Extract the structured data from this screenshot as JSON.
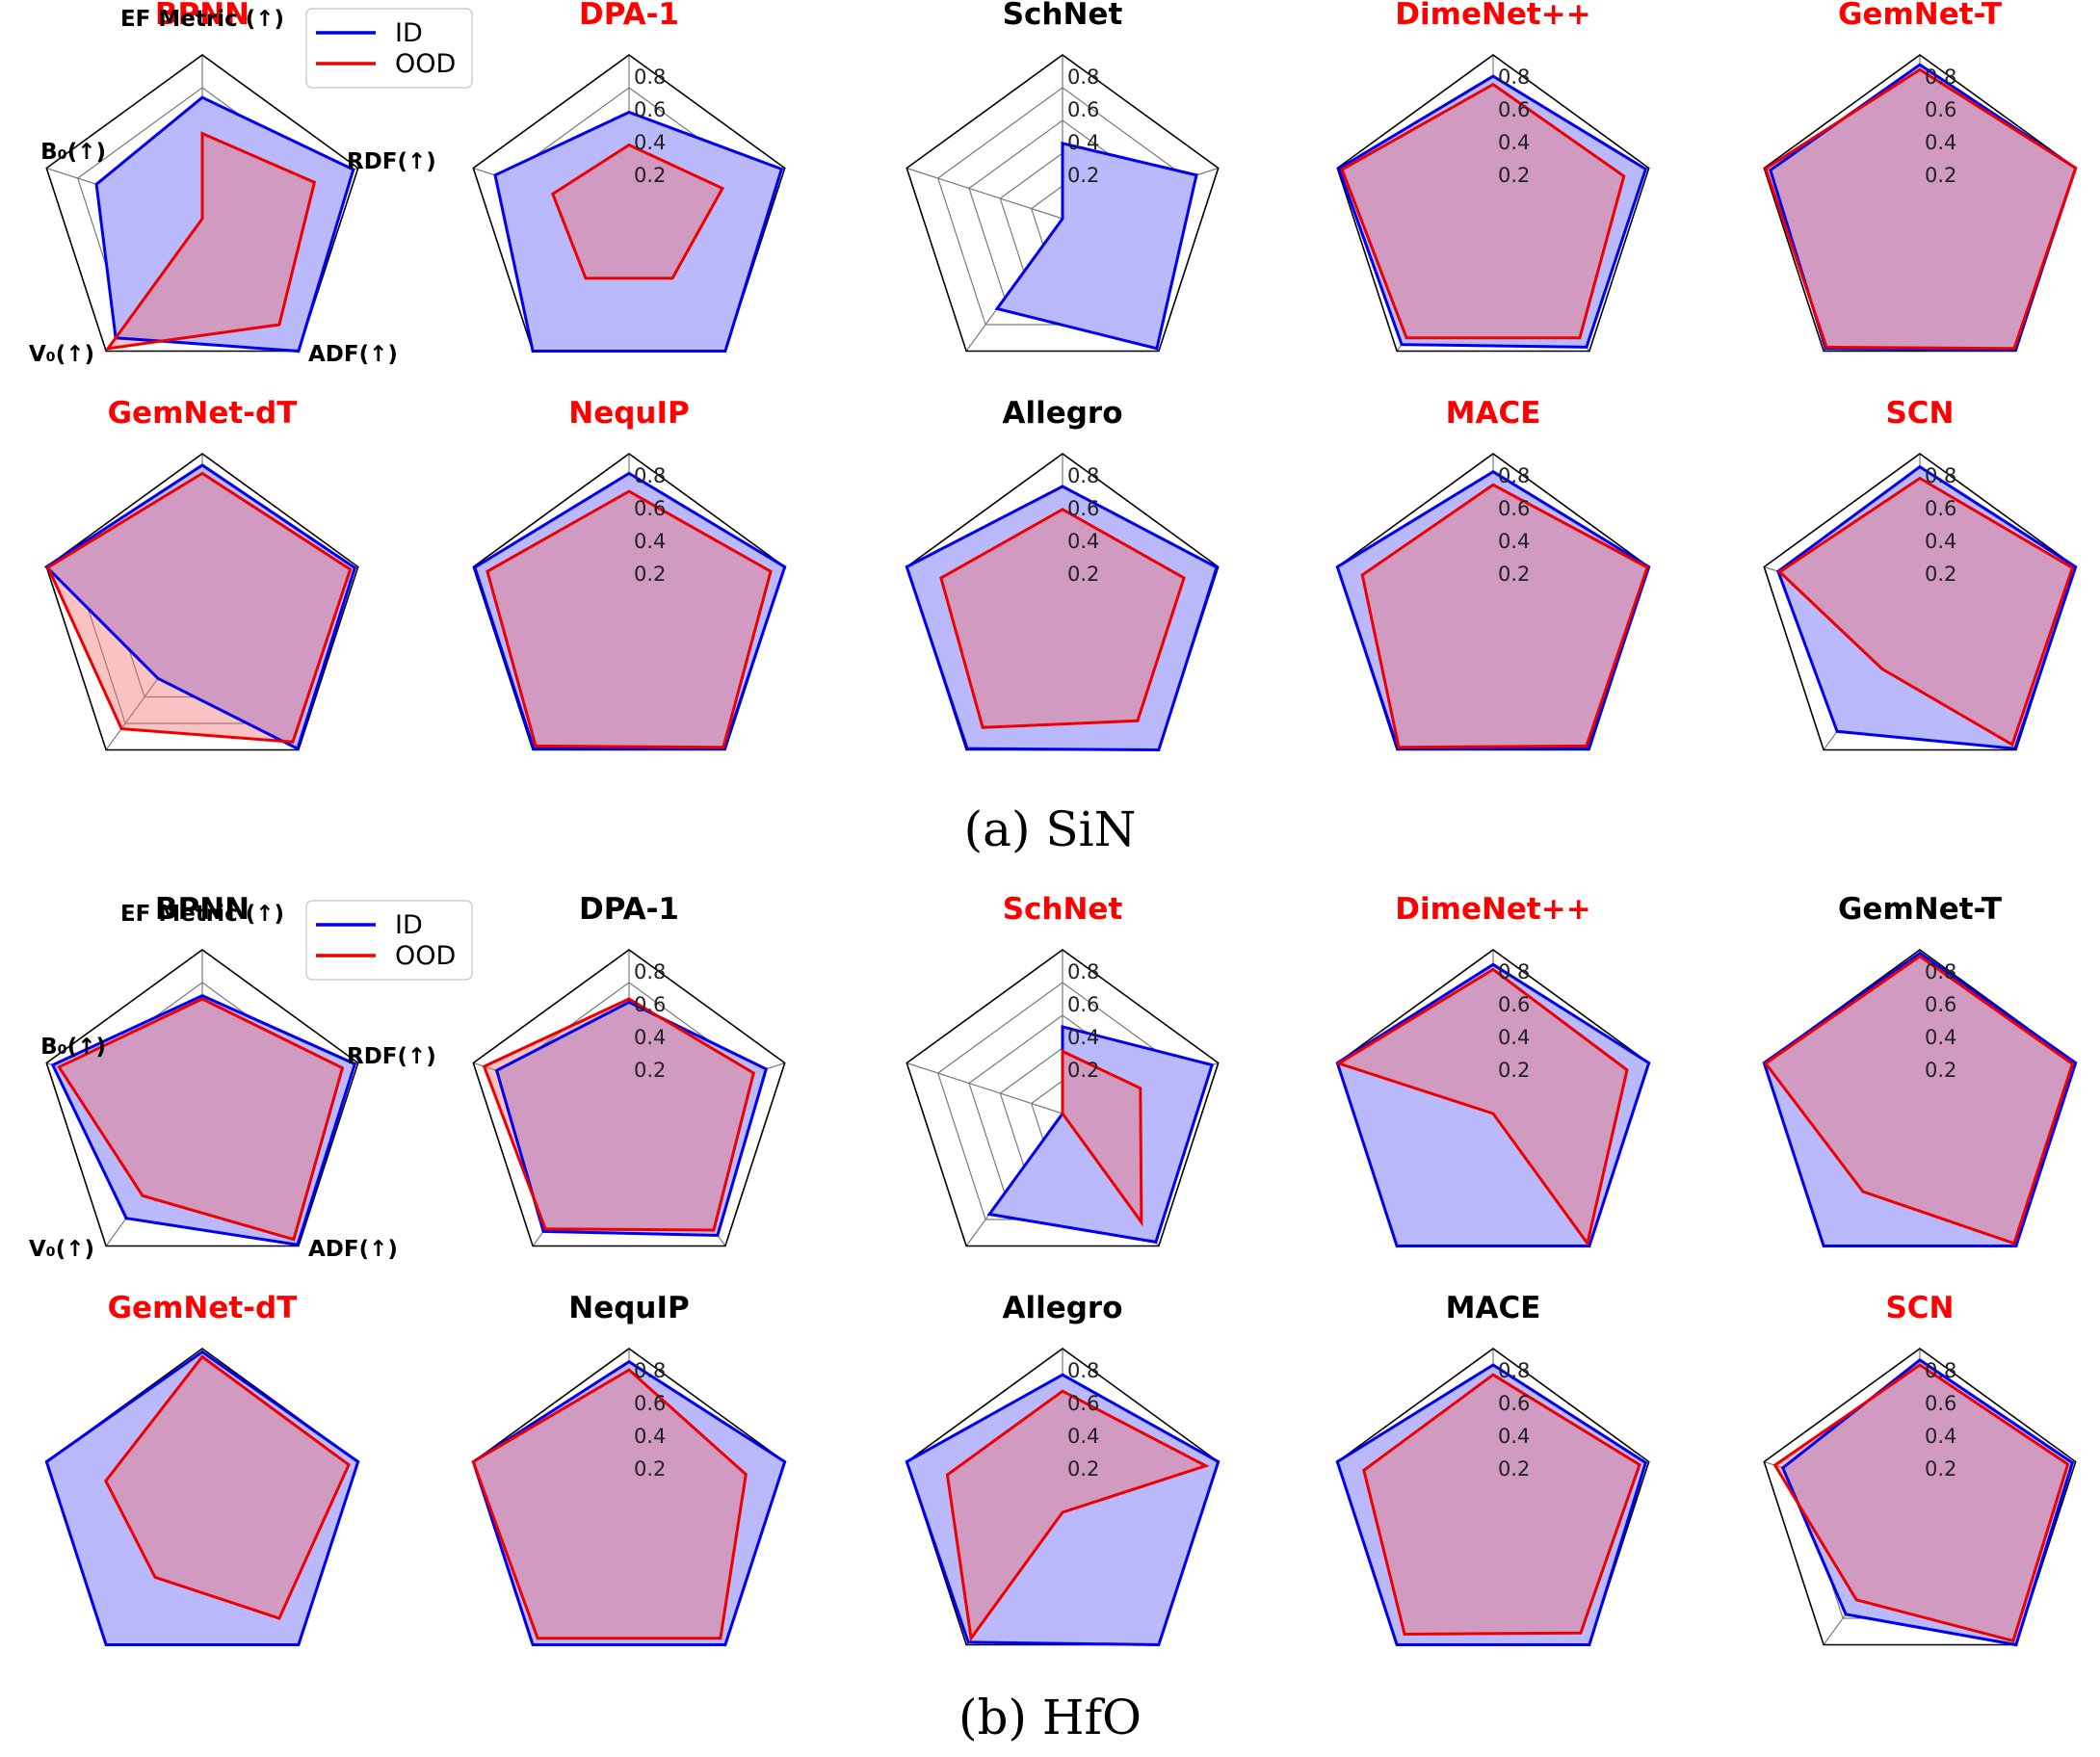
{
  "chart_data": {
    "type": "radar",
    "axes": [
      "EF Metric (↑)",
      "RDF(↑)",
      "ADF(↑)",
      "V₀(↑)",
      "B₀(↑)"
    ],
    "radial_ticks": [
      "0.2",
      "0.4",
      "0.6",
      "0.8"
    ],
    "rlim": [
      0,
      1
    ],
    "legend": {
      "placement": "top",
      "entries": [
        {
          "name": "ID",
          "color": "#0000ee"
        },
        {
          "name": "OOD",
          "color": "#ee0000"
        }
      ]
    },
    "colors": {
      "id": "#0000ee",
      "ood": "#ee0000",
      "id_fill": "#b9b9fb",
      "overlap_fill": "#cf8fbf",
      "ood_fill": "#f8bebe",
      "title_red": "#ff0000",
      "title_black": "#000000"
    },
    "panels": [
      {
        "caption": "(a) SiN",
        "models": [
          {
            "name": "BPNN",
            "title_color": "red",
            "id": [
              0.74,
              0.97,
              1.0,
              0.9,
              0.68
            ],
            "ood": [
              0.52,
              0.72,
              0.8,
              0.98,
              0.0
            ]
          },
          {
            "name": "DPA-1",
            "title_color": "red",
            "id": [
              0.65,
              0.98,
              1.0,
              1.0,
              0.86
            ],
            "ood": [
              0.45,
              0.6,
              0.45,
              0.45,
              0.49
            ]
          },
          {
            "name": "SchNet",
            "title_color": "black",
            "id": [
              0.46,
              0.86,
              0.98,
              0.68,
              0.0
            ],
            "ood": [
              0.0,
              0.0,
              0.0,
              0.0,
              0.0
            ]
          },
          {
            "name": "DimeNet++",
            "title_color": "red",
            "id": [
              0.87,
              0.98,
              0.97,
              0.95,
              0.99
            ],
            "ood": [
              0.82,
              0.84,
              0.9,
              0.9,
              0.97
            ]
          },
          {
            "name": "GemNet-T",
            "title_color": "red",
            "id": [
              0.94,
              1.0,
              0.99,
              0.98,
              0.96
            ],
            "ood": [
              0.91,
              1.0,
              0.98,
              0.97,
              0.99
            ]
          }
        ]
      },
      {
        "caption": "(a) SiN",
        "models": [
          {
            "name": "GemNet-dT",
            "title_color": "red",
            "id": [
              0.93,
              0.98,
              0.99,
              0.46,
              1.0
            ],
            "ood": [
              0.88,
              0.95,
              0.94,
              0.84,
              0.99
            ]
          },
          {
            "name": "NequIP",
            "title_color": "red",
            "id": [
              0.88,
              1.0,
              0.99,
              0.99,
              0.99
            ],
            "ood": [
              0.77,
              0.91,
              0.98,
              0.97,
              0.91
            ]
          },
          {
            "name": "Allegro",
            "title_color": "black",
            "id": [
              0.8,
              0.99,
              1.0,
              0.99,
              1.0
            ],
            "ood": [
              0.66,
              0.78,
              0.78,
              0.83,
              0.78
            ]
          },
          {
            "name": "MACE",
            "title_color": "red",
            "id": [
              0.89,
              1.0,
              0.99,
              0.99,
              1.0
            ],
            "ood": [
              0.81,
              0.99,
              0.97,
              0.98,
              0.84
            ]
          },
          {
            "name": "SCN",
            "title_color": "red",
            "id": [
              0.92,
              1.0,
              0.99,
              0.86,
              0.91
            ],
            "ood": [
              0.85,
              0.98,
              0.96,
              0.39,
              0.9
            ]
          }
        ]
      },
      {
        "caption": "(b) HfO",
        "models": [
          {
            "name": "BPNN",
            "title_color": "black",
            "id": [
              0.72,
              0.98,
              0.99,
              0.79,
              0.96
            ],
            "ood": [
              0.7,
              0.9,
              0.95,
              0.62,
              0.92
            ]
          },
          {
            "name": "DPA-1",
            "title_color": "black",
            "id": [
              0.68,
              0.88,
              0.92,
              0.89,
              0.85
            ],
            "ood": [
              0.7,
              0.8,
              0.88,
              0.87,
              0.93
            ]
          },
          {
            "name": "SchNet",
            "title_color": "red",
            "id": [
              0.53,
              0.96,
              0.97,
              0.76,
              0.0
            ],
            "ood": [
              0.38,
              0.5,
              0.82,
              0.0,
              0.0
            ]
          },
          {
            "name": "DimeNet++",
            "title_color": "red",
            "id": [
              0.91,
              1.0,
              1.0,
              1.0,
              1.0
            ],
            "ood": [
              0.88,
              0.86,
              0.98,
              0.0,
              0.99
            ]
          },
          {
            "name": "GemNet-T",
            "title_color": "black",
            "id": [
              0.98,
              1.0,
              1.0,
              1.0,
              1.0
            ],
            "ood": [
              0.96,
              0.98,
              0.98,
              0.59,
              0.99
            ]
          }
        ]
      },
      {
        "caption": "(b) HfO",
        "models": [
          {
            "name": "GemNet-dT",
            "title_color": "red",
            "id": [
              0.98,
              1.0,
              1.0,
              1.0,
              1.0
            ],
            "ood": [
              0.95,
              0.94,
              0.8,
              0.49,
              0.62
            ]
          },
          {
            "name": "NequIP",
            "title_color": "black",
            "id": [
              0.92,
              1.0,
              1.0,
              1.0,
              1.0
            ],
            "ood": [
              0.87,
              0.75,
              0.95,
              0.95,
              1.0
            ]
          },
          {
            "name": "Allegro",
            "title_color": "black",
            "id": [
              0.84,
              1.0,
              1.0,
              0.98,
              1.0
            ],
            "ood": [
              0.74,
              0.92,
              0.0,
              0.95,
              0.74
            ]
          },
          {
            "name": "MACE",
            "title_color": "black",
            "id": [
              0.9,
              0.98,
              1.0,
              1.0,
              1.0
            ],
            "ood": [
              0.84,
              0.94,
              0.91,
              0.92,
              0.83
            ]
          },
          {
            "name": "SCN",
            "title_color": "red",
            "id": [
              0.93,
              0.98,
              1.0,
              0.77,
              0.88
            ],
            "ood": [
              0.9,
              0.95,
              0.97,
              0.66,
              0.93
            ]
          }
        ]
      }
    ]
  },
  "captions": [
    "(a) SiN",
    "(b) HfO"
  ]
}
